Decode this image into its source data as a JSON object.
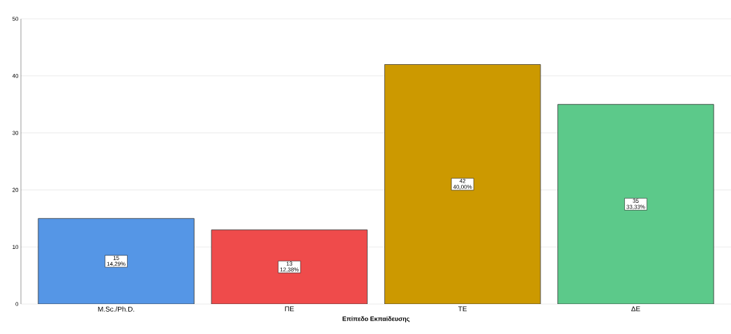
{
  "chart_data": {
    "type": "bar",
    "xlabel": "Επίπεδο Εκπαίδευσης",
    "categories": [
      "M.Sc./Ph.D.",
      "ΠΕ",
      "ΤΕ",
      "ΔΕ"
    ],
    "values": [
      15,
      13,
      42,
      35
    ],
    "colors": [
      "#5596e6",
      "#ef4b4b",
      "#cc9900",
      "#5cc98a"
    ],
    "value_labels": [
      "15 14,29%",
      "13 12,38%",
      "42 40,00%",
      "35 33,33%"
    ],
    "ylim": [
      0,
      50
    ],
    "yticks": [
      0,
      10,
      20,
      30,
      40,
      50
    ],
    "grid": "y"
  }
}
